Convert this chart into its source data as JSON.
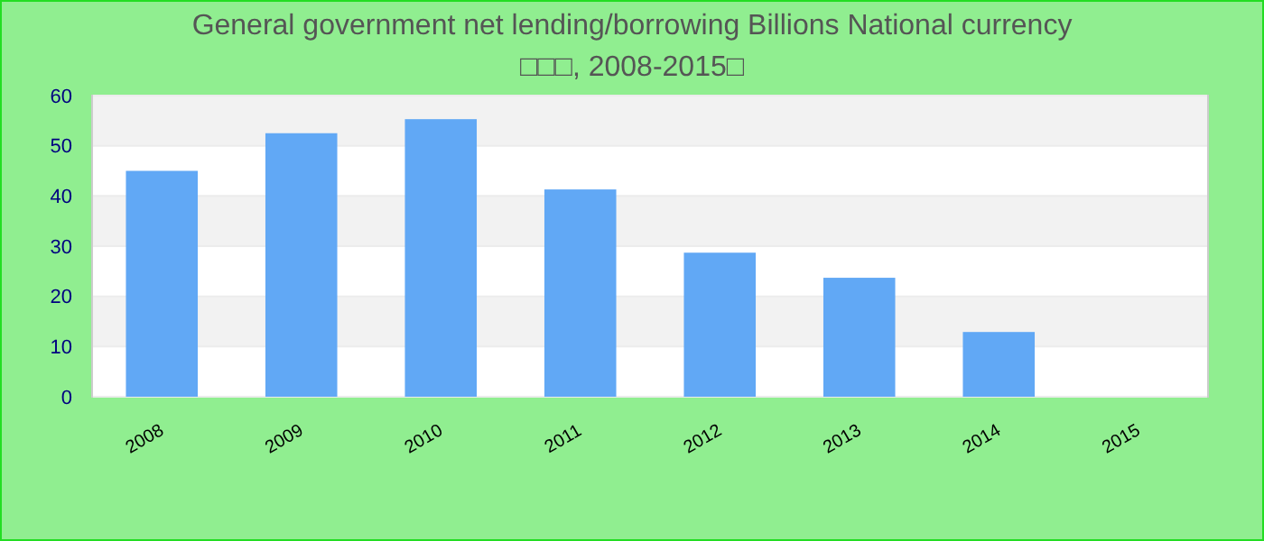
{
  "chart_data": {
    "type": "bar",
    "title": "General government net lending/borrowing Billions National currency",
    "subtitle": "□□□, 2008-2015□",
    "categories": [
      "2008",
      "2009",
      "2010",
      "2011",
      "2012",
      "2013",
      "2014",
      "2015"
    ],
    "values": [
      45,
      52.5,
      55.3,
      41.3,
      28.7,
      23.7,
      12.9,
      null
    ],
    "color": "#61a8f5",
    "ylim": [
      0,
      60
    ],
    "yticks": [
      0,
      10,
      20,
      30,
      40,
      50,
      60
    ],
    "grid": "y"
  }
}
